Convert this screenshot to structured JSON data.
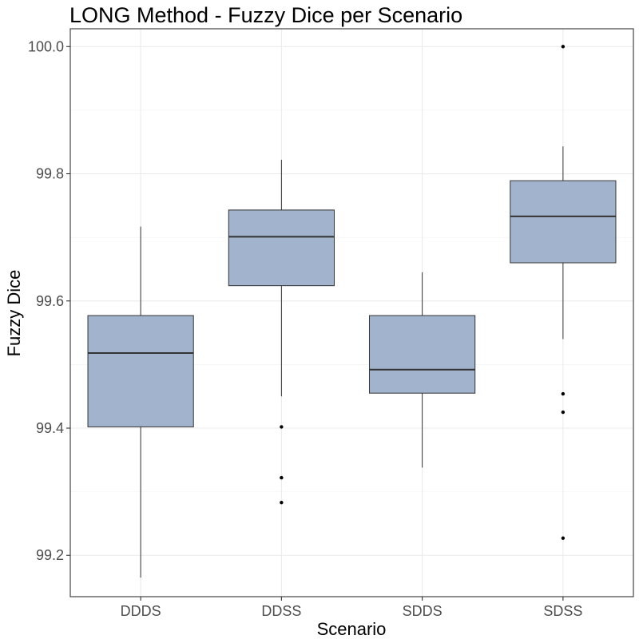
{
  "chart_data": {
    "type": "box",
    "title": "LONG Method - Fuzzy Dice per Scenario",
    "xlabel": "Scenario",
    "ylabel": "Fuzzy Dice",
    "ylim": [
      99.135,
      100.028
    ],
    "y_ticks": [
      99.2,
      99.4,
      99.6,
      99.8,
      100.0
    ],
    "y_tick_labels": [
      "99.2",
      "99.4",
      "99.6",
      "99.8",
      "100.0"
    ],
    "categories": [
      "DDDS",
      "DDSS",
      "SDDS",
      "SDSS"
    ],
    "grid": true,
    "boxes": [
      {
        "category": "DDDS",
        "whisker_low": 99.165,
        "q1": 99.402,
        "median": 99.518,
        "q3": 99.577,
        "whisker_high": 99.717,
        "outliers": []
      },
      {
        "category": "DDSS",
        "whisker_low": 99.45,
        "q1": 99.624,
        "median": 99.701,
        "q3": 99.743,
        "whisker_high": 99.822,
        "outliers": [
          99.402,
          99.322,
          99.283
        ]
      },
      {
        "category": "SDDS",
        "whisker_low": 99.338,
        "q1": 99.455,
        "median": 99.492,
        "q3": 99.577,
        "whisker_high": 99.645,
        "outliers": []
      },
      {
        "category": "SDSS",
        "whisker_low": 99.54,
        "q1": 99.66,
        "median": 99.733,
        "q3": 99.789,
        "whisker_high": 99.843,
        "outliers": [
          100.0,
          99.454,
          99.425,
          99.227
        ]
      }
    ],
    "colors": {
      "box_fill": "#a2b4cd",
      "box_stroke": "#333333",
      "outlier": "#000000",
      "panel_border": "#333333"
    }
  }
}
